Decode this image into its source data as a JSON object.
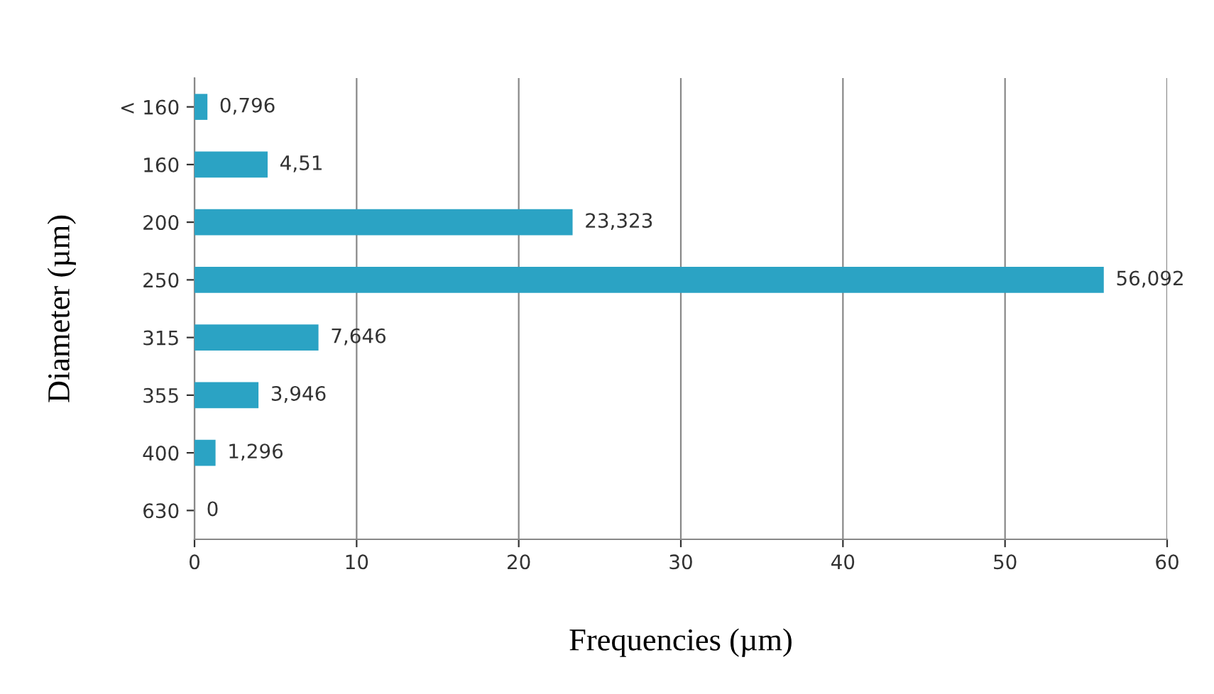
{
  "chart_data": {
    "type": "bar",
    "orientation": "horizontal",
    "categories": [
      "< 160",
      "160",
      "200",
      "250",
      "315",
      "355",
      "400",
      "630"
    ],
    "values": [
      0.796,
      4.51,
      23.323,
      56.092,
      7.646,
      3.946,
      1.296,
      0
    ],
    "value_labels": [
      "0,796",
      "4,51",
      "23,323",
      "56,092",
      "7,646",
      "3,946",
      "1,296",
      "0"
    ],
    "color": "#2ba3c4",
    "xlim": [
      0,
      60
    ],
    "xticks": [
      0,
      10,
      20,
      30,
      40,
      50,
      60
    ],
    "grid": "x",
    "xlabel": "Frequencies (µm)",
    "ylabel": "Diameter (µm)"
  }
}
